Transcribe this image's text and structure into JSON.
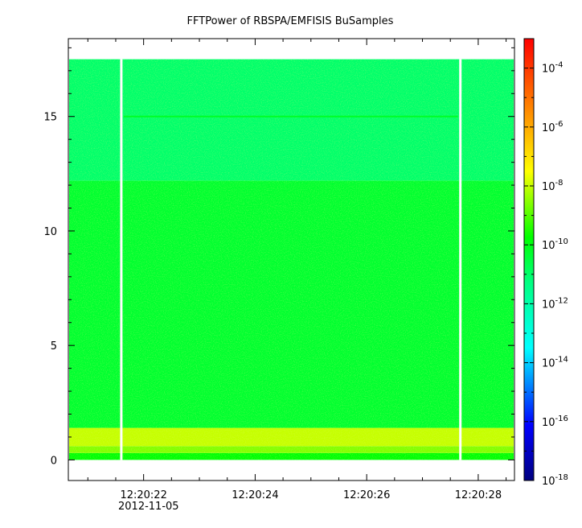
{
  "chart_data": {
    "type": "heatmap",
    "title": "FFTPower of RBSPA/EMFISIS  BuSamples",
    "xlabel": "",
    "ylabel": "",
    "x_date_label": "2012-11-05",
    "x_ticks": [
      "12:20:22",
      "12:20:24",
      "12:20:26",
      "12:20:28"
    ],
    "x_tick_seconds": [
      22,
      24,
      26,
      28
    ],
    "xlim_seconds": [
      20.65,
      28.65
    ],
    "y_ticks": [
      0,
      5,
      10,
      15
    ],
    "ylim": [
      -0.9,
      18.4
    ],
    "data_extent_y": [
      0,
      17.5
    ],
    "gaps_seconds": [
      21.6,
      27.68
    ],
    "colorbar": {
      "scale": "log",
      "range_exp": [
        -18,
        -3
      ],
      "tick_exponents": [
        -4,
        -6,
        -8,
        -10,
        -12,
        -14,
        -16,
        -18
      ],
      "tick_base": "10"
    },
    "bands": [
      {
        "y_from": 0,
        "y_to": 0.3,
        "log10_power": -9.8
      },
      {
        "y_from": 0.3,
        "y_to": 0.6,
        "log10_power": -8.6
      },
      {
        "y_from": 0.6,
        "y_to": 1.4,
        "log10_power": -8.0
      },
      {
        "y_from": 1.4,
        "y_to": 12.2,
        "log10_power": -10.3
      },
      {
        "y_from": 12.2,
        "y_to": 17.5,
        "log10_power": -11.0
      }
    ],
    "line_feature": {
      "y": 15.0,
      "log10_power": -10.2
    },
    "grid": false,
    "legend": "colorbar-right"
  }
}
